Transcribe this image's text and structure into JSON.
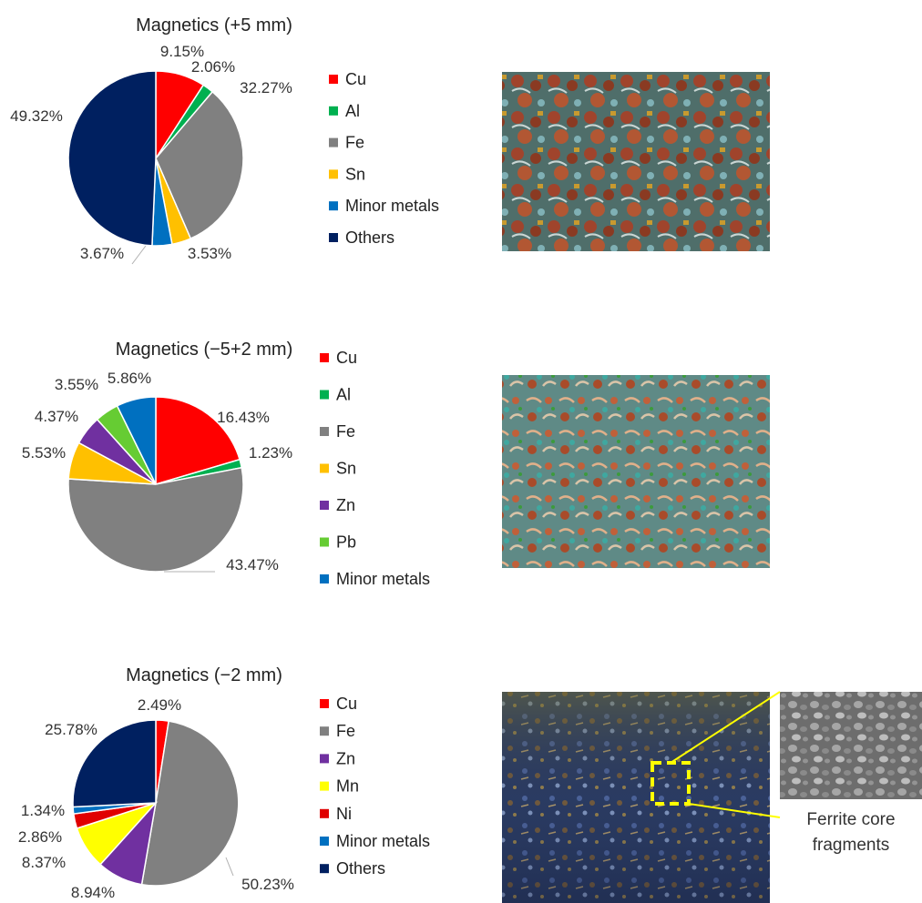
{
  "chart_data": [
    {
      "type": "pie",
      "title": "Magnetics (+5 mm)",
      "slices": [
        {
          "name": "Cu",
          "value": 9.15,
          "label": "9.15%",
          "color": "#ff0000"
        },
        {
          "name": "Al",
          "value": 2.06,
          "label": "2.06%",
          "color": "#00b050"
        },
        {
          "name": "Fe",
          "value": 32.27,
          "label": "32.27%",
          "color": "#808080"
        },
        {
          "name": "Sn",
          "value": 3.53,
          "label": "3.53%",
          "color": "#ffc000"
        },
        {
          "name": "Minor metals",
          "value": 3.67,
          "label": "3.67%",
          "color": "#0070c0"
        },
        {
          "name": "Others",
          "value": 49.32,
          "label": "49.32%",
          "color": "#002060"
        }
      ],
      "legend": [
        "Cu",
        "Al",
        "Fe",
        "Sn",
        "Minor metals",
        "Others"
      ],
      "legend_position": "right"
    },
    {
      "type": "pie",
      "title": "Magnetics (−5+2 mm)",
      "slices": [
        {
          "name": "Cu",
          "value": 16.43,
          "label": "16.43%",
          "color": "#ff0000"
        },
        {
          "name": "Al",
          "value": 1.23,
          "label": "1.23%",
          "color": "#00b050"
        },
        {
          "name": "Fe",
          "value": 43.47,
          "label": "43.47%",
          "color": "#808080"
        },
        {
          "name": "Sn",
          "value": 5.53,
          "label": "5.53%",
          "color": "#ffc000"
        },
        {
          "name": "Zn",
          "value": 4.37,
          "label": "4.37%",
          "color": "#7030a0"
        },
        {
          "name": "Pb",
          "value": 3.55,
          "label": "3.55%",
          "color": "#66cc33"
        },
        {
          "name": "Minor metals",
          "value": 5.86,
          "label": "5.86%",
          "color": "#0070c0"
        }
      ],
      "legend": [
        "Cu",
        "Al",
        "Fe",
        "Sn",
        "Zn",
        "Pb",
        "Minor metals"
      ],
      "legend_position": "right"
    },
    {
      "type": "pie",
      "title": "Magnetics (−2 mm)",
      "slices": [
        {
          "name": "Cu",
          "value": 2.49,
          "label": "2.49%",
          "color": "#ff0000"
        },
        {
          "name": "Fe",
          "value": 50.23,
          "label": "50.23%",
          "color": "#808080"
        },
        {
          "name": "Zn",
          "value": 8.94,
          "label": "8.94%",
          "color": "#7030a0"
        },
        {
          "name": "Mn",
          "value": 8.37,
          "label": "8.37%",
          "color": "#ffff00"
        },
        {
          "name": "Ni",
          "value": 2.86,
          "label": "2.86%",
          "color": "#e00000"
        },
        {
          "name": "Minor metals",
          "value": 1.34,
          "label": "1.34%",
          "color": "#0070c0"
        },
        {
          "name": "Others",
          "value": 25.78,
          "label": "25.78%",
          "color": "#002060"
        }
      ],
      "legend": [
        "Cu",
        "Fe",
        "Zn",
        "Mn",
        "Ni",
        "Minor metals",
        "Others"
      ],
      "legend_position": "right"
    }
  ],
  "photos": {
    "photo_1": "sample photo",
    "photo_2": "sample photo",
    "photo_3": "sample photo",
    "inset": "inset photo"
  },
  "callout": {
    "line1": "Ferrite core",
    "line2": "fragments",
    "highlight_color": "#ffff00"
  }
}
